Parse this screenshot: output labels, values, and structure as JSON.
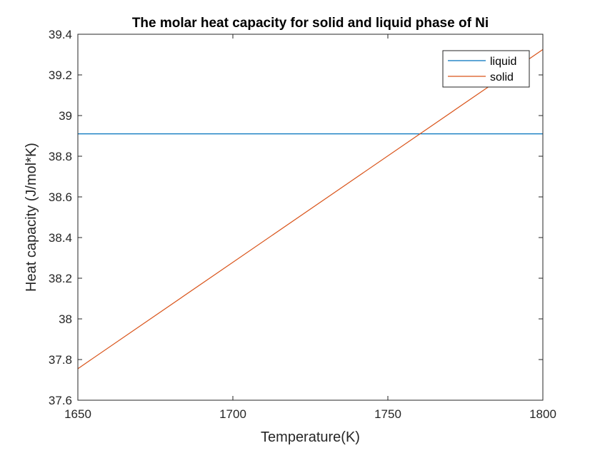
{
  "chart_data": {
    "type": "line",
    "title": "The molar heat capacity for solid and liquid phase of Ni",
    "xlabel": "Temperature(K)",
    "ylabel": "Heat capacity (J/mol*K)",
    "xlim": [
      1650,
      1800
    ],
    "ylim": [
      37.6,
      39.4
    ],
    "xticks": [
      1650,
      1700,
      1750,
      1800
    ],
    "yticks": [
      37.6,
      37.8,
      38,
      38.2,
      38.4,
      38.6,
      38.8,
      39,
      39.2,
      39.4
    ],
    "xtick_labels": [
      "1650",
      "1700",
      "1750",
      "1800"
    ],
    "ytick_labels": [
      "37.6",
      "37.8",
      "38",
      "38.2",
      "38.4",
      "38.6",
      "38.8",
      "39",
      "39.2",
      "39.4"
    ],
    "grid": false,
    "legend_position": "top-right",
    "series": [
      {
        "name": "liquid",
        "color": "#0072BD",
        "x": [
          1650,
          1800
        ],
        "y": [
          38.91,
          38.91
        ]
      },
      {
        "name": "solid",
        "color": "#D95319",
        "x": [
          1650,
          1800
        ],
        "y": [
          37.755,
          39.325
        ]
      }
    ]
  }
}
